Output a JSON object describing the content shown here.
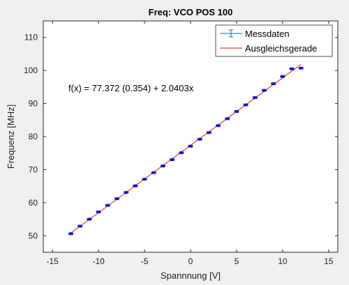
{
  "chart_data": {
    "type": "scatter",
    "title": "Freq: VCO POS 100",
    "xlabel": "Spannnung [V]",
    "ylabel": "Frequenz [MHz]",
    "xlim": [
      -16,
      16
    ],
    "ylim": [
      45,
      115
    ],
    "x_ticks": [
      -15,
      -10,
      -5,
      0,
      5,
      10,
      15
    ],
    "y_ticks": [
      50,
      60,
      70,
      80,
      90,
      100,
      110
    ],
    "grid": false,
    "legend_position": "top-right",
    "annotation": "f(x) = 77.372 (0.354) + 2.0403x",
    "series": [
      {
        "name": "Messdaten",
        "style": "errorbar",
        "color": "#0000cc",
        "x": [
          -13,
          -12,
          -11,
          -10,
          -9,
          -8,
          -7,
          -6,
          -5,
          -4,
          -3,
          -2,
          -1,
          0,
          1,
          2,
          3,
          4,
          5,
          6,
          7,
          8,
          9,
          10,
          11,
          12
        ],
        "y": [
          50.6,
          52.9,
          55.0,
          57.2,
          59.2,
          61.2,
          63.1,
          65.1,
          67.1,
          69.1,
          71.1,
          73.0,
          75.1,
          77.1,
          79.2,
          81.2,
          83.3,
          85.4,
          87.6,
          89.6,
          91.8,
          94.0,
          96.0,
          98.2,
          100.5,
          100.7
        ],
        "error": [
          0.3,
          0.3,
          0.3,
          0.3,
          0.3,
          0.3,
          0.3,
          0.3,
          0.3,
          0.3,
          0.3,
          0.3,
          0.3,
          0.3,
          0.3,
          0.3,
          0.3,
          0.3,
          0.3,
          0.3,
          0.3,
          0.3,
          0.3,
          0.3,
          0.3,
          0.3
        ]
      },
      {
        "name": "Ausgleichsgerade",
        "style": "line",
        "color": "#e8443a",
        "intercept": 77.372,
        "slope": 2.0403,
        "x_range": [
          -13,
          12
        ]
      }
    ]
  }
}
